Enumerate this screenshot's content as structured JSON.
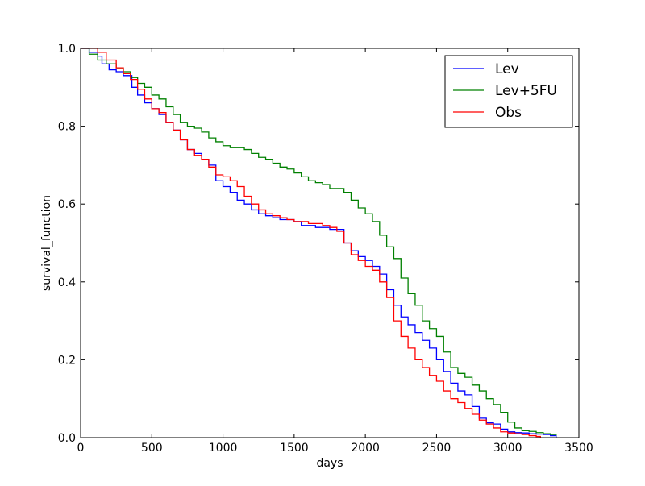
{
  "chart_data": {
    "type": "line",
    "title": "",
    "xlabel": "days",
    "ylabel": "survival_function",
    "xlim": [
      0,
      3500
    ],
    "ylim": [
      0,
      1.0
    ],
    "x_ticks": [
      0,
      500,
      1000,
      1500,
      2000,
      2500,
      3000,
      3500
    ],
    "y_ticks": [
      0.0,
      0.2,
      0.4,
      0.6,
      0.8,
      1.0
    ],
    "x_tick_labels": [
      "0",
      "500",
      "1000",
      "1500",
      "2000",
      "2500",
      "3000",
      "3500"
    ],
    "y_tick_labels": [
      "0.0",
      "0.2",
      "0.4",
      "0.6",
      "0.8",
      "1.0"
    ],
    "grid": false,
    "legend_position": "top-right",
    "series": [
      {
        "name": "Lev",
        "color": "#0000ff",
        "x": [
          0,
          60,
          120,
          150,
          200,
          250,
          300,
          360,
          400,
          450,
          500,
          550,
          600,
          650,
          700,
          750,
          800,
          850,
          900,
          950,
          1000,
          1050,
          1100,
          1150,
          1200,
          1250,
          1300,
          1350,
          1400,
          1450,
          1500,
          1550,
          1600,
          1650,
          1700,
          1750,
          1800,
          1850,
          1900,
          1950,
          2000,
          2050,
          2100,
          2150,
          2200,
          2250,
          2300,
          2350,
          2400,
          2450,
          2500,
          2550,
          2600,
          2650,
          2700,
          2750,
          2800,
          2850,
          2900,
          2950,
          3000,
          3050,
          3100,
          3150,
          3200,
          3250,
          3300,
          3340
        ],
        "y": [
          1.0,
          0.99,
          0.98,
          0.96,
          0.945,
          0.94,
          0.93,
          0.9,
          0.88,
          0.86,
          0.845,
          0.83,
          0.81,
          0.79,
          0.765,
          0.74,
          0.73,
          0.715,
          0.7,
          0.66,
          0.645,
          0.63,
          0.61,
          0.6,
          0.585,
          0.575,
          0.57,
          0.565,
          0.56,
          0.56,
          0.555,
          0.545,
          0.545,
          0.54,
          0.54,
          0.535,
          0.535,
          0.5,
          0.48,
          0.465,
          0.455,
          0.44,
          0.42,
          0.38,
          0.34,
          0.31,
          0.29,
          0.27,
          0.25,
          0.23,
          0.2,
          0.17,
          0.14,
          0.12,
          0.11,
          0.08,
          0.05,
          0.038,
          0.035,
          0.022,
          0.015,
          0.013,
          0.012,
          0.01,
          0.009,
          0.008,
          0.005,
          0.0
        ]
      },
      {
        "name": "Lev+5FU",
        "color": "#008000",
        "x": [
          0,
          60,
          120,
          180,
          250,
          300,
          350,
          400,
          450,
          500,
          550,
          600,
          650,
          700,
          750,
          800,
          850,
          900,
          950,
          1000,
          1050,
          1100,
          1150,
          1200,
          1250,
          1300,
          1350,
          1400,
          1450,
          1500,
          1550,
          1600,
          1650,
          1700,
          1750,
          1800,
          1850,
          1900,
          1950,
          2000,
          2050,
          2100,
          2150,
          2200,
          2250,
          2300,
          2350,
          2400,
          2450,
          2500,
          2550,
          2600,
          2650,
          2700,
          2750,
          2800,
          2850,
          2900,
          2950,
          3000,
          3050,
          3100,
          3150,
          3200,
          3250,
          3300,
          3340
        ],
        "y": [
          1.0,
          0.985,
          0.97,
          0.96,
          0.95,
          0.94,
          0.925,
          0.91,
          0.9,
          0.88,
          0.87,
          0.85,
          0.83,
          0.81,
          0.8,
          0.795,
          0.785,
          0.77,
          0.76,
          0.75,
          0.745,
          0.745,
          0.74,
          0.73,
          0.72,
          0.715,
          0.705,
          0.695,
          0.69,
          0.68,
          0.67,
          0.66,
          0.655,
          0.65,
          0.64,
          0.64,
          0.63,
          0.61,
          0.59,
          0.575,
          0.555,
          0.52,
          0.49,
          0.46,
          0.41,
          0.37,
          0.34,
          0.3,
          0.28,
          0.26,
          0.22,
          0.18,
          0.165,
          0.155,
          0.135,
          0.12,
          0.1,
          0.085,
          0.065,
          0.04,
          0.025,
          0.018,
          0.016,
          0.013,
          0.01,
          0.008,
          0.005
        ]
      },
      {
        "name": "Obs",
        "color": "#ff0000",
        "x": [
          0,
          60,
          120,
          180,
          250,
          300,
          350,
          400,
          450,
          500,
          550,
          600,
          650,
          700,
          750,
          800,
          850,
          900,
          950,
          1000,
          1050,
          1100,
          1150,
          1200,
          1250,
          1300,
          1350,
          1400,
          1450,
          1500,
          1550,
          1600,
          1650,
          1700,
          1750,
          1800,
          1850,
          1900,
          1950,
          2000,
          2050,
          2100,
          2150,
          2200,
          2250,
          2300,
          2350,
          2400,
          2450,
          2500,
          2550,
          2600,
          2650,
          2700,
          2750,
          2800,
          2850,
          2900,
          2950,
          3000,
          3050,
          3100,
          3150,
          3200,
          3230
        ],
        "y": [
          1.0,
          1.0,
          0.99,
          0.97,
          0.95,
          0.935,
          0.92,
          0.895,
          0.87,
          0.845,
          0.835,
          0.81,
          0.79,
          0.765,
          0.74,
          0.725,
          0.715,
          0.695,
          0.675,
          0.67,
          0.66,
          0.645,
          0.62,
          0.6,
          0.585,
          0.575,
          0.57,
          0.565,
          0.56,
          0.555,
          0.555,
          0.55,
          0.55,
          0.545,
          0.54,
          0.53,
          0.5,
          0.47,
          0.455,
          0.44,
          0.43,
          0.4,
          0.36,
          0.3,
          0.26,
          0.23,
          0.2,
          0.18,
          0.16,
          0.145,
          0.12,
          0.1,
          0.09,
          0.075,
          0.06,
          0.045,
          0.035,
          0.025,
          0.015,
          0.012,
          0.01,
          0.008,
          0.005,
          0.003,
          0.0
        ]
      }
    ]
  }
}
